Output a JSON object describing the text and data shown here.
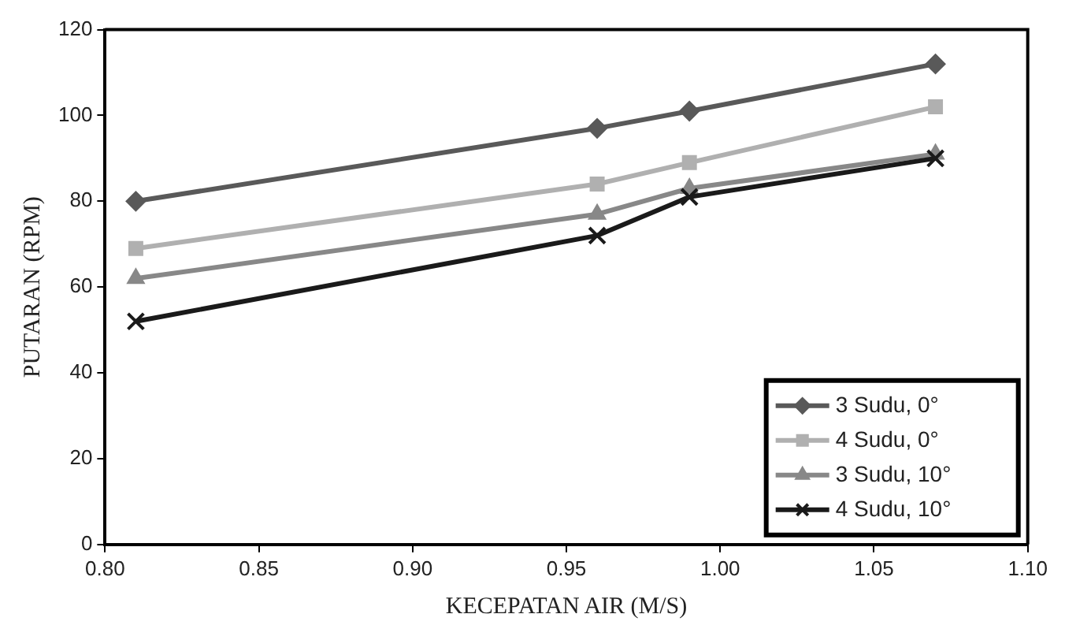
{
  "chart_data": {
    "type": "line",
    "xlabel": "KECEPATAN AIR (M/S)",
    "ylabel": "PUTARAN (RPM)",
    "xlim": [
      0.8,
      1.1
    ],
    "xticks": [
      {
        "value": 0.8,
        "label": "0.80"
      },
      {
        "value": 0.85,
        "label": "0.85"
      },
      {
        "value": 0.9,
        "label": "0.90"
      },
      {
        "value": 0.95,
        "label": "0.95"
      },
      {
        "value": 1.0,
        "label": "1.00"
      },
      {
        "value": 1.05,
        "label": "1.05"
      },
      {
        "value": 1.1,
        "label": "1.10"
      }
    ],
    "ylim": [
      0,
      120
    ],
    "yticks": [
      0,
      20,
      40,
      60,
      80,
      100,
      120
    ],
    "grid": false,
    "legend": "bottom right",
    "line_style": "solid",
    "x": [
      0.81,
      0.96,
      0.99,
      1.07
    ],
    "series": [
      {
        "name": "3 Sudu, 0°",
        "color": "#595959",
        "marker": "diamond",
        "values": [
          80,
          97,
          101,
          112
        ]
      },
      {
        "name": "4 Sudu, 0°",
        "color": "#b0b0b0",
        "marker": "square",
        "values": [
          69,
          84,
          89,
          102
        ]
      },
      {
        "name": "3 Sudu, 10°",
        "color": "#888888",
        "marker": "triangle",
        "values": [
          62,
          77,
          83,
          91
        ]
      },
      {
        "name": "4 Sudu, 10°",
        "color": "#1a1a1a",
        "marker": "cross",
        "values": [
          52,
          72,
          81,
          90
        ]
      }
    ]
  }
}
